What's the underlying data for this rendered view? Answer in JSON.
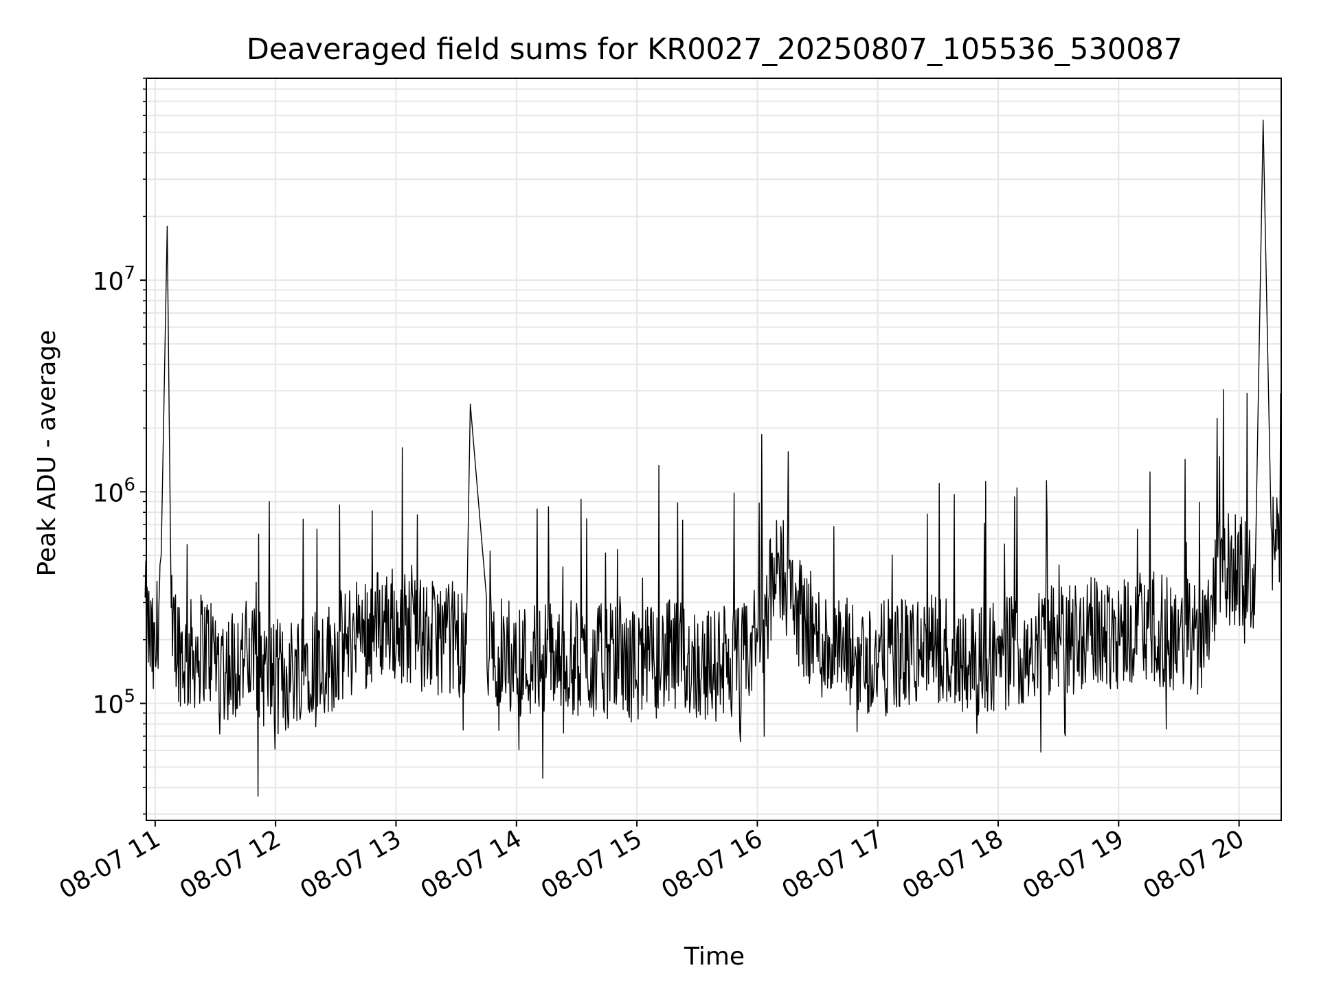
{
  "chart_data": {
    "type": "line",
    "title": "Deaveraged field sums for KR0027_20250807_105536_530087",
    "xlabel": "Time",
    "ylabel": "Peak ADU - average",
    "y_scale": "log",
    "xlim": [
      "2025-08-07 10:55:36",
      "2025-08-07 20:21:00"
    ],
    "ylim": [
      28000,
      90000000
    ],
    "grid": true,
    "grid_minor": true,
    "legend": "none",
    "x_ticks": [
      {
        "value": "2025-08-07 11:00",
        "label": "08-07 11"
      },
      {
        "value": "2025-08-07 12:00",
        "label": "08-07 12"
      },
      {
        "value": "2025-08-07 13:00",
        "label": "08-07 13"
      },
      {
        "value": "2025-08-07 14:00",
        "label": "08-07 14"
      },
      {
        "value": "2025-08-07 15:00",
        "label": "08-07 15"
      },
      {
        "value": "2025-08-07 16:00",
        "label": "08-07 16"
      },
      {
        "value": "2025-08-07 17:00",
        "label": "08-07 17"
      },
      {
        "value": "2025-08-07 18:00",
        "label": "08-07 18"
      },
      {
        "value": "2025-08-07 19:00",
        "label": "08-07 19"
      },
      {
        "value": "2025-08-07 20:00",
        "label": "08-07 20"
      }
    ],
    "y_ticks": [
      {
        "value": 100000,
        "base": "10",
        "exp": "5"
      },
      {
        "value": 1000000,
        "base": "10",
        "exp": "6"
      },
      {
        "value": 10000000,
        "base": "10",
        "exp": "7"
      }
    ],
    "series": [
      {
        "color": "#000000",
        "points": [
          [
            "2025-08-07 10:55",
            260000
          ],
          [
            "2025-08-07 11:00",
            150000
          ],
          [
            "2025-08-07 11:03",
            500000
          ],
          [
            "2025-08-07 11:06",
            18000000
          ],
          [
            "2025-08-07 11:08",
            230000
          ],
          [
            "2025-08-07 11:15",
            160000
          ],
          [
            "2025-08-07 11:25",
            190000
          ],
          [
            "2025-08-07 11:35",
            150000
          ],
          [
            "2025-08-07 11:45",
            170000
          ],
          [
            "2025-08-07 11:55",
            140000
          ],
          [
            "2025-08-07 12:05",
            130000
          ],
          [
            "2025-08-07 12:15",
            170000
          ],
          [
            "2025-08-07 12:25",
            160000
          ],
          [
            "2025-08-07 12:35",
            190000
          ],
          [
            "2025-08-07 12:45",
            220000
          ],
          [
            "2025-08-07 12:55",
            250000
          ],
          [
            "2025-08-07 13:05",
            230000
          ],
          [
            "2025-08-07 13:15",
            200000
          ],
          [
            "2025-08-07 13:25",
            210000
          ],
          [
            "2025-08-07 13:35",
            190000
          ],
          [
            "2025-08-07 13:37",
            2600000
          ],
          [
            "2025-08-07 13:45",
            180000
          ],
          [
            "2025-08-07 13:55",
            170000
          ],
          [
            "2025-08-07 14:05",
            160000
          ],
          [
            "2025-08-07 14:15",
            170000
          ],
          [
            "2025-08-07 14:25",
            165000
          ],
          [
            "2025-08-07 14:35",
            155000
          ],
          [
            "2025-08-07 14:45",
            160000
          ],
          [
            "2025-08-07 14:55",
            150000
          ],
          [
            "2025-08-07 15:05",
            155000
          ],
          [
            "2025-08-07 15:15",
            165000
          ],
          [
            "2025-08-07 15:25",
            160000
          ],
          [
            "2025-08-07 15:35",
            150000
          ],
          [
            "2025-08-07 15:45",
            155000
          ],
          [
            "2025-08-07 15:55",
            160000
          ],
          [
            "2025-08-07 16:05",
            300000
          ],
          [
            "2025-08-07 16:12",
            450000
          ],
          [
            "2025-08-07 16:20",
            280000
          ],
          [
            "2025-08-07 16:30",
            200000
          ],
          [
            "2025-08-07 16:40",
            170000
          ],
          [
            "2025-08-07 16:50",
            165000
          ],
          [
            "2025-08-07 17:00",
            160000
          ],
          [
            "2025-08-07 17:10",
            170000
          ],
          [
            "2025-08-07 17:20",
            175000
          ],
          [
            "2025-08-07 17:30",
            180000
          ],
          [
            "2025-08-07 17:40",
            170000
          ],
          [
            "2025-08-07 17:50",
            165000
          ],
          [
            "2025-08-07 18:00",
            170000
          ],
          [
            "2025-08-07 18:10",
            180000
          ],
          [
            "2025-08-07 18:20",
            190000
          ],
          [
            "2025-08-07 18:30",
            200000
          ],
          [
            "2025-08-07 18:40",
            210000
          ],
          [
            "2025-08-07 18:50",
            215000
          ],
          [
            "2025-08-07 19:00",
            220000
          ],
          [
            "2025-08-07 19:10",
            230000
          ],
          [
            "2025-08-07 19:20",
            220000
          ],
          [
            "2025-08-07 19:30",
            210000
          ],
          [
            "2025-08-07 19:40",
            200000
          ],
          [
            "2025-08-07 19:50",
            420000
          ],
          [
            "2025-08-07 20:00",
            430000
          ],
          [
            "2025-08-07 20:08",
            380000
          ],
          [
            "2025-08-07 20:12",
            57000000
          ],
          [
            "2025-08-07 20:16",
            560000
          ],
          [
            "2025-08-07 20:21",
            520000
          ]
        ]
      }
    ]
  }
}
